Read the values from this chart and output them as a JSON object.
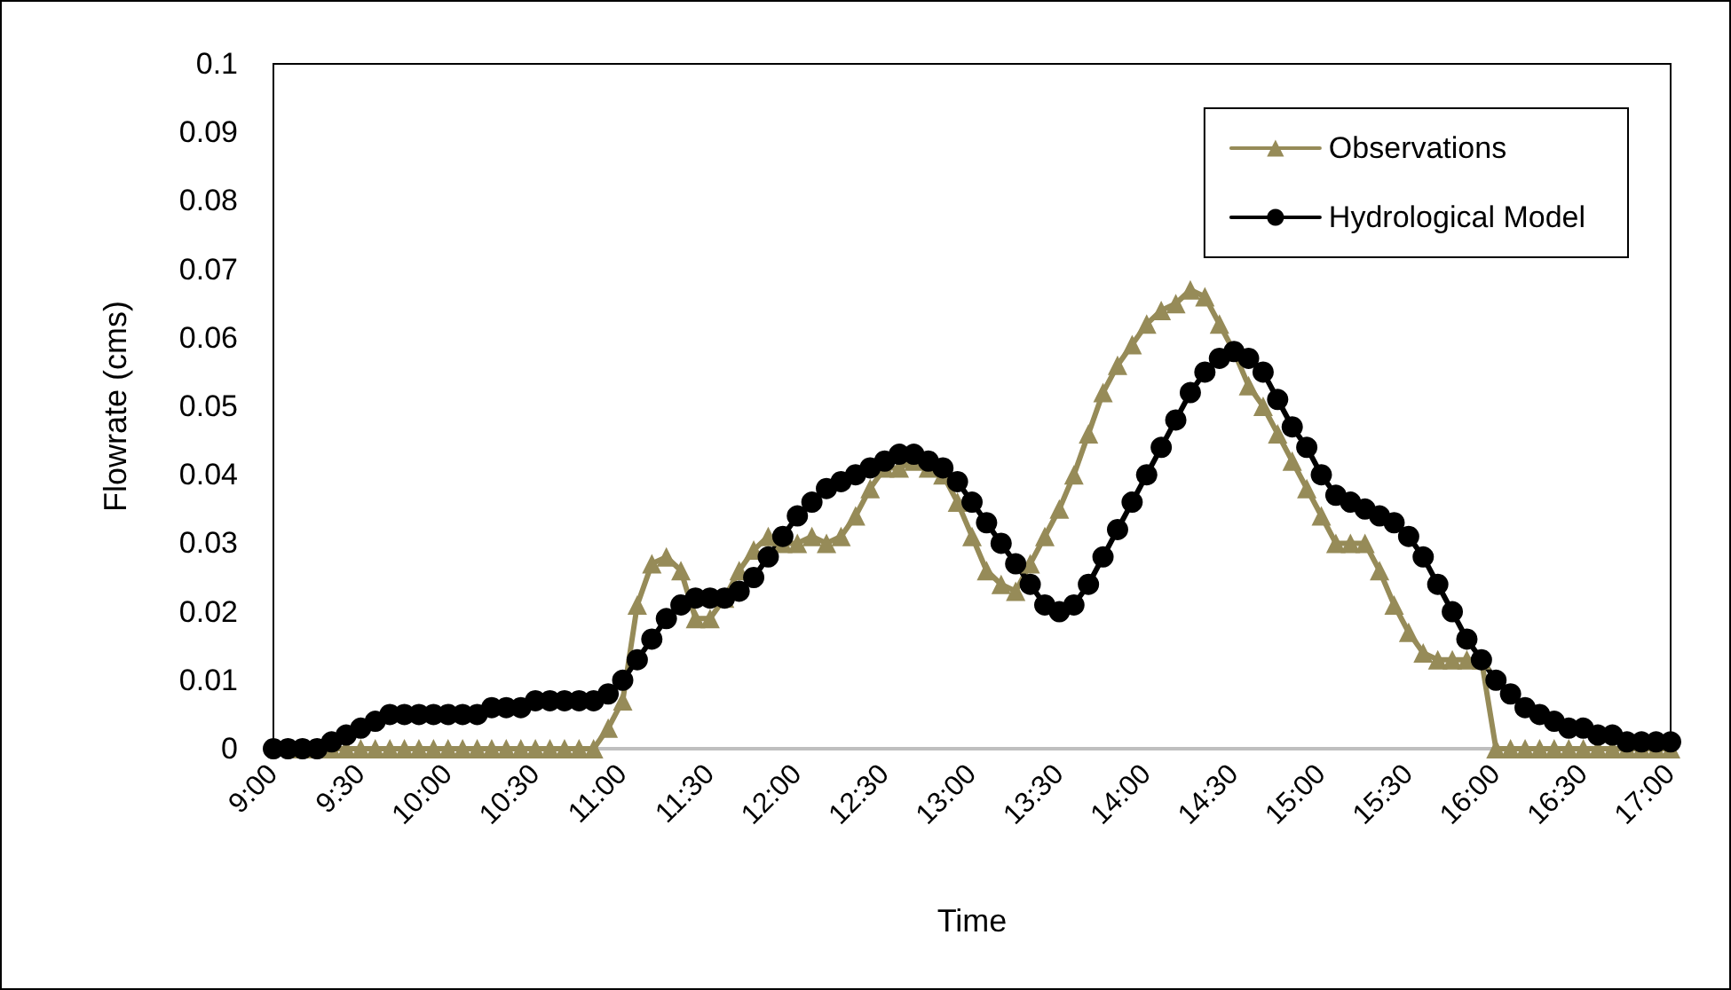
{
  "chart_data": {
    "type": "line",
    "xlabel": "Time",
    "ylabel": "Flowrate (cms)",
    "categories": [
      "9:00",
      null,
      null,
      null,
      null,
      null,
      "9:30",
      null,
      null,
      null,
      null,
      null,
      "10:00",
      null,
      null,
      null,
      null,
      null,
      "10:30",
      null,
      null,
      null,
      null,
      null,
      "11:00",
      null,
      null,
      null,
      null,
      null,
      "11:30",
      null,
      null,
      null,
      null,
      null,
      "12:00",
      null,
      null,
      null,
      null,
      null,
      "12:30",
      null,
      null,
      null,
      null,
      null,
      "13:00",
      null,
      null,
      null,
      null,
      null,
      "13:30",
      null,
      null,
      null,
      null,
      null,
      "14:00",
      null,
      null,
      null,
      null,
      null,
      "14:30",
      null,
      null,
      null,
      null,
      null,
      "15:00",
      null,
      null,
      null,
      null,
      null,
      "15:30",
      null,
      null,
      null,
      null,
      null,
      "16:00",
      null,
      null,
      null,
      null,
      null,
      "16:30",
      null,
      null,
      null,
      null,
      null,
      "17:00"
    ],
    "series": [
      {
        "name": "Observations",
        "color": "#968b58",
        "marker": "triangle",
        "values": [
          null,
          null,
          0,
          0,
          0,
          0,
          0,
          0,
          0,
          0,
          0,
          0,
          0,
          0,
          0,
          0,
          0,
          0,
          0,
          0,
          0,
          0,
          0,
          0.003,
          0.007,
          0.021,
          0.027,
          0.028,
          0.026,
          0.019,
          0.019,
          0.022,
          0.026,
          0.029,
          0.031,
          0.03,
          0.03,
          0.031,
          0.03,
          0.031,
          0.034,
          0.038,
          0.041,
          0.041,
          0.042,
          0.041,
          0.04,
          0.036,
          0.031,
          0.026,
          0.024,
          0.023,
          0.027,
          0.031,
          0.035,
          0.04,
          0.046,
          0.052,
          0.056,
          0.059,
          0.062,
          0.064,
          0.065,
          0.067,
          0.066,
          0.062,
          0.058,
          0.053,
          0.05,
          0.046,
          0.042,
          0.038,
          0.034,
          0.03,
          0.03,
          0.03,
          0.026,
          0.021,
          0.017,
          0.014,
          0.013,
          0.013,
          0.013,
          0.013,
          0,
          0,
          0,
          0,
          0,
          0,
          0,
          0,
          0,
          0,
          0,
          0,
          0
        ]
      },
      {
        "name": "Hydrological Model",
        "color": "#000000",
        "marker": "circle",
        "values": [
          0,
          0,
          0,
          0,
          0.001,
          0.002,
          0.003,
          0.004,
          0.005,
          0.005,
          0.005,
          0.005,
          0.005,
          0.005,
          0.005,
          0.006,
          0.006,
          0.006,
          0.007,
          0.007,
          0.007,
          0.007,
          0.007,
          0.008,
          0.01,
          0.013,
          0.016,
          0.019,
          0.021,
          0.022,
          0.022,
          0.022,
          0.023,
          0.025,
          0.028,
          0.031,
          0.034,
          0.036,
          0.038,
          0.039,
          0.04,
          0.041,
          0.042,
          0.043,
          0.043,
          0.042,
          0.041,
          0.039,
          0.036,
          0.033,
          0.03,
          0.027,
          0.024,
          0.021,
          0.02,
          0.021,
          0.024,
          0.028,
          0.032,
          0.036,
          0.04,
          0.044,
          0.048,
          0.052,
          0.055,
          0.057,
          0.058,
          0.057,
          0.055,
          0.051,
          0.047,
          0.044,
          0.04,
          0.037,
          0.036,
          0.035,
          0.034,
          0.033,
          0.031,
          0.028,
          0.024,
          0.02,
          0.016,
          0.013,
          0.01,
          0.008,
          0.006,
          0.005,
          0.004,
          0.003,
          0.003,
          0.002,
          0.002,
          0.001,
          0.001,
          0.001,
          0.001
        ]
      }
    ],
    "ylim": [
      0,
      0.1
    ],
    "yticks": [
      0,
      0.01,
      0.02,
      0.03,
      0.04,
      0.05,
      0.06,
      0.07,
      0.08,
      0.09,
      0.1
    ],
    "legend": "top right"
  }
}
